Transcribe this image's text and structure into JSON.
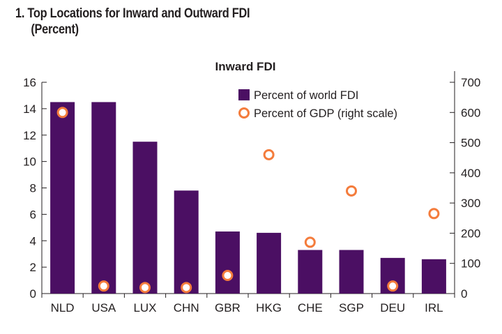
{
  "figure": {
    "title_line1": "1. Top Locations for Inward and Outward FDI",
    "title_line2": "(Percent)"
  },
  "colors": {
    "bar": "#4b0f63",
    "dot": "#f47c3c",
    "axis": "#231f20"
  },
  "chart_data": {
    "type": "bar",
    "title": "Inward FDI",
    "categories": [
      "NLD",
      "USA",
      "LUX",
      "CHN",
      "GBR",
      "HKG",
      "CHE",
      "SGP",
      "DEU",
      "IRL"
    ],
    "series": [
      {
        "name": "Percent of world FDI",
        "type": "bar",
        "axis": "left",
        "values": [
          14.5,
          14.5,
          11.5,
          7.8,
          4.7,
          4.6,
          3.3,
          3.3,
          2.7,
          2.6
        ]
      },
      {
        "name": "Percent of GDP (right scale)",
        "type": "scatter",
        "axis": "right",
        "values": [
          600,
          25,
          20,
          20,
          60,
          460,
          170,
          340,
          25,
          265
        ]
      }
    ],
    "ylim_left": [
      0,
      16
    ],
    "yticks_left": [
      "0",
      "2",
      "4",
      "6",
      "8",
      "10",
      "12",
      "14",
      "16"
    ],
    "ylim_right": [
      0,
      700
    ],
    "yticks_right": [
      "0",
      "100",
      "200",
      "300",
      "400",
      "500",
      "600",
      "700"
    ],
    "grid": false,
    "legend_position": "top-right"
  }
}
